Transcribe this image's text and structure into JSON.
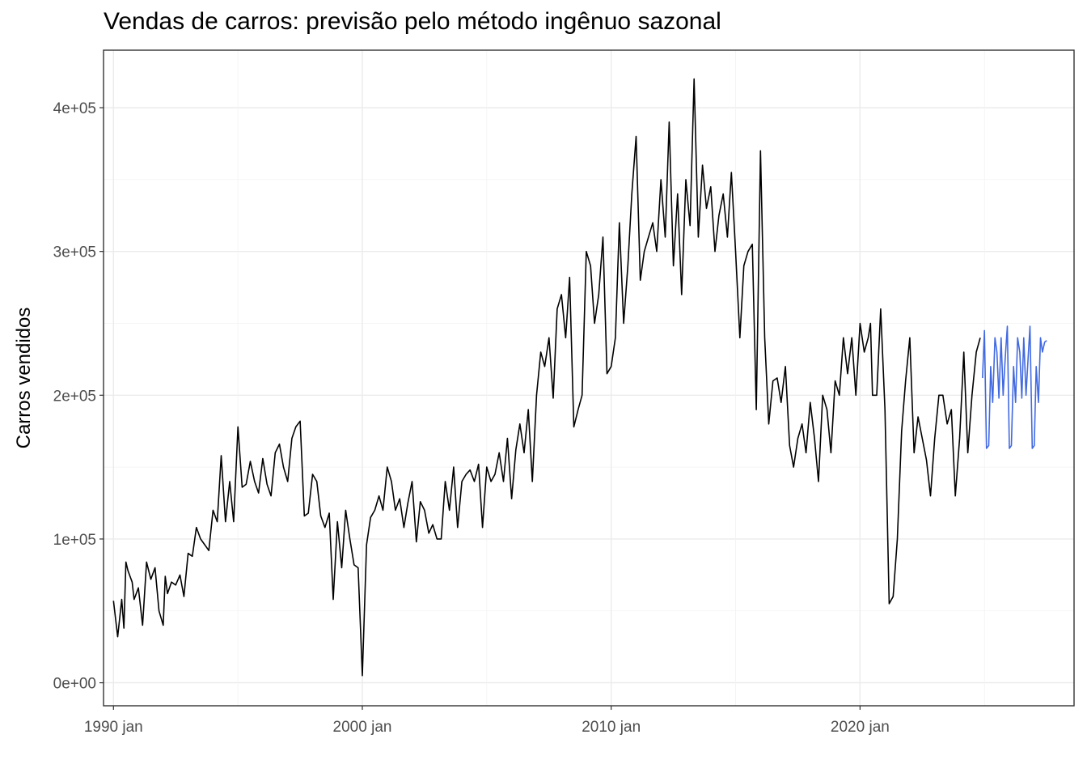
{
  "chart_data": {
    "type": "line",
    "title": "Vendas de carros: previsão pelo método ingênuo sazonal",
    "xlabel": "",
    "ylabel": "Carros vendidos",
    "x_range": [
      1989.6,
      2028.6
    ],
    "ylim": [
      -16000,
      440000
    ],
    "x_ticks": [
      {
        "value": 1990,
        "label": "1990 jan"
      },
      {
        "value": 2000,
        "label": "2000 jan"
      },
      {
        "value": 2010,
        "label": "2010 jan"
      },
      {
        "value": 2020,
        "label": "2020 jan"
      }
    ],
    "y_ticks": [
      {
        "value": 0,
        "label": "0e+00"
      },
      {
        "value": 100000,
        "label": "1e+05"
      },
      {
        "value": 200000,
        "label": "2e+05"
      },
      {
        "value": 300000,
        "label": "3e+05"
      },
      {
        "value": 400000,
        "label": "4e+05"
      }
    ],
    "grid": true,
    "series": [
      {
        "role": "observed",
        "color": "#000000",
        "x": [
          1990.0,
          1990.17,
          1990.33,
          1990.42,
          1990.5,
          1990.58,
          1990.75,
          1990.83,
          1991.0,
          1991.17,
          1991.33,
          1991.5,
          1991.67,
          1991.83,
          1992.0,
          1992.08,
          1992.17,
          1992.33,
          1992.5,
          1992.67,
          1992.83,
          1993.0,
          1993.17,
          1993.33,
          1993.5,
          1993.67,
          1993.83,
          1994.0,
          1994.17,
          1994.33,
          1994.5,
          1994.67,
          1994.83,
          1995.0,
          1995.17,
          1995.33,
          1995.5,
          1995.67,
          1995.83,
          1996.0,
          1996.17,
          1996.33,
          1996.5,
          1996.67,
          1996.83,
          1997.0,
          1997.17,
          1997.33,
          1997.5,
          1997.67,
          1997.83,
          1998.0,
          1998.17,
          1998.33,
          1998.5,
          1998.67,
          1998.83,
          1999.0,
          1999.17,
          1999.33,
          1999.5,
          1999.67,
          1999.83,
          2000.0,
          2000.17,
          2000.33,
          2000.5,
          2000.67,
          2000.83,
          2001.0,
          2001.17,
          2001.33,
          2001.5,
          2001.67,
          2001.83,
          2002.0,
          2002.17,
          2002.33,
          2002.5,
          2002.67,
          2002.83,
          2003.0,
          2003.17,
          2003.33,
          2003.5,
          2003.67,
          2003.83,
          2004.0,
          2004.17,
          2004.33,
          2004.5,
          2004.67,
          2004.83,
          2005.0,
          2005.17,
          2005.33,
          2005.5,
          2005.67,
          2005.83,
          2006.0,
          2006.17,
          2006.33,
          2006.5,
          2006.67,
          2006.83,
          2007.0,
          2007.17,
          2007.33,
          2007.5,
          2007.67,
          2007.83,
          2008.0,
          2008.17,
          2008.33,
          2008.5,
          2008.67,
          2008.83,
          2009.0,
          2009.17,
          2009.33,
          2009.5,
          2009.67,
          2009.83,
          2010.0,
          2010.17,
          2010.33,
          2010.5,
          2010.67,
          2010.83,
          2011.0,
          2011.17,
          2011.33,
          2011.5,
          2011.67,
          2011.83,
          2012.0,
          2012.17,
          2012.33,
          2012.5,
          2012.67,
          2012.83,
          2013.0,
          2013.17,
          2013.33,
          2013.5,
          2013.67,
          2013.83,
          2014.0,
          2014.17,
          2014.33,
          2014.5,
          2014.67,
          2014.83,
          2015.0,
          2015.17,
          2015.33,
          2015.5,
          2015.67,
          2015.83,
          2016.0,
          2016.17,
          2016.33,
          2016.5,
          2016.67,
          2016.83,
          2017.0,
          2017.17,
          2017.33,
          2017.5,
          2017.67,
          2017.83,
          2018.0,
          2018.17,
          2018.33,
          2018.5,
          2018.67,
          2018.83,
          2019.0,
          2019.17,
          2019.33,
          2019.5,
          2019.67,
          2019.83,
          2020.0,
          2020.17,
          2020.33,
          2020.42,
          2020.5,
          2020.67,
          2020.83,
          2021.0,
          2021.17,
          2021.33,
          2021.5,
          2021.67,
          2021.83,
          2022.0,
          2022.17,
          2022.33,
          2022.5,
          2022.67,
          2022.83,
          2023.0,
          2023.17,
          2023.33,
          2023.5,
          2023.67,
          2023.83,
          2024.0,
          2024.17,
          2024.33,
          2024.5,
          2024.67,
          2024.83
        ],
        "y": [
          57000,
          32000,
          58000,
          38000,
          84000,
          78000,
          70000,
          58000,
          66000,
          40000,
          84000,
          72000,
          80000,
          50000,
          40000,
          74000,
          62000,
          70000,
          68000,
          75000,
          60000,
          90000,
          88000,
          108000,
          100000,
          96000,
          92000,
          120000,
          112000,
          158000,
          112000,
          140000,
          112000,
          178000,
          136000,
          138000,
          154000,
          140000,
          132000,
          156000,
          138000,
          130000,
          160000,
          166000,
          150000,
          140000,
          170000,
          178000,
          182000,
          116000,
          118000,
          145000,
          140000,
          116000,
          108000,
          118000,
          58000,
          112000,
          80000,
          120000,
          100000,
          82000,
          80000,
          5000,
          96000,
          115000,
          120000,
          130000,
          120000,
          150000,
          140000,
          120000,
          128000,
          108000,
          125000,
          140000,
          98000,
          126000,
          120000,
          104000,
          110000,
          100000,
          100000,
          140000,
          120000,
          150000,
          108000,
          140000,
          145000,
          148000,
          140000,
          152000,
          108000,
          150000,
          140000,
          145000,
          160000,
          140000,
          170000,
          128000,
          162000,
          180000,
          160000,
          190000,
          140000,
          200000,
          230000,
          220000,
          240000,
          198000,
          260000,
          270000,
          240000,
          282000,
          178000,
          190000,
          200000,
          300000,
          290000,
          250000,
          270000,
          310000,
          215000,
          220000,
          240000,
          320000,
          250000,
          290000,
          340000,
          380000,
          280000,
          300000,
          310000,
          320000,
          300000,
          350000,
          310000,
          390000,
          290000,
          340000,
          270000,
          350000,
          318000,
          420000,
          310000,
          360000,
          330000,
          345000,
          300000,
          325000,
          340000,
          310000,
          355000,
          300000,
          240000,
          290000,
          300000,
          305000,
          190000,
          370000,
          240000,
          180000,
          210000,
          212000,
          195000,
          220000,
          165000,
          150000,
          170000,
          180000,
          160000,
          195000,
          170000,
          140000,
          200000,
          190000,
          160000,
          210000,
          200000,
          240000,
          215000,
          240000,
          200000,
          250000,
          230000,
          240000,
          250000,
          200000,
          200000,
          260000,
          190000,
          55000,
          60000,
          100000,
          175000,
          210000,
          240000,
          160000,
          185000,
          170000,
          155000,
          130000,
          170000,
          200000,
          200000,
          180000,
          190000,
          130000,
          170000,
          230000,
          160000,
          200000,
          230000,
          240000
        ]
      },
      {
        "role": "forecast",
        "color": "#4169e1",
        "x": [
          2024.92,
          2025.0,
          2025.08,
          2025.17,
          2025.25,
          2025.33,
          2025.42,
          2025.5,
          2025.58,
          2025.67,
          2025.75,
          2025.83,
          2025.92,
          2026.0,
          2026.08,
          2026.17,
          2026.25,
          2026.33,
          2026.42,
          2026.5,
          2026.58,
          2026.67,
          2026.75,
          2026.83,
          2026.92,
          2027.0,
          2027.08,
          2027.17,
          2027.25,
          2027.33,
          2027.42,
          2027.5
        ],
        "y": [
          212000,
          245000,
          163000,
          165000,
          220000,
          195000,
          240000,
          230000,
          198000,
          240000,
          200000,
          225000,
          248000,
          163000,
          165000,
          220000,
          195000,
          240000,
          230000,
          198000,
          240000,
          200000,
          225000,
          248000,
          163000,
          165000,
          220000,
          195000,
          240000,
          230000,
          237000,
          238000
        ]
      }
    ]
  }
}
